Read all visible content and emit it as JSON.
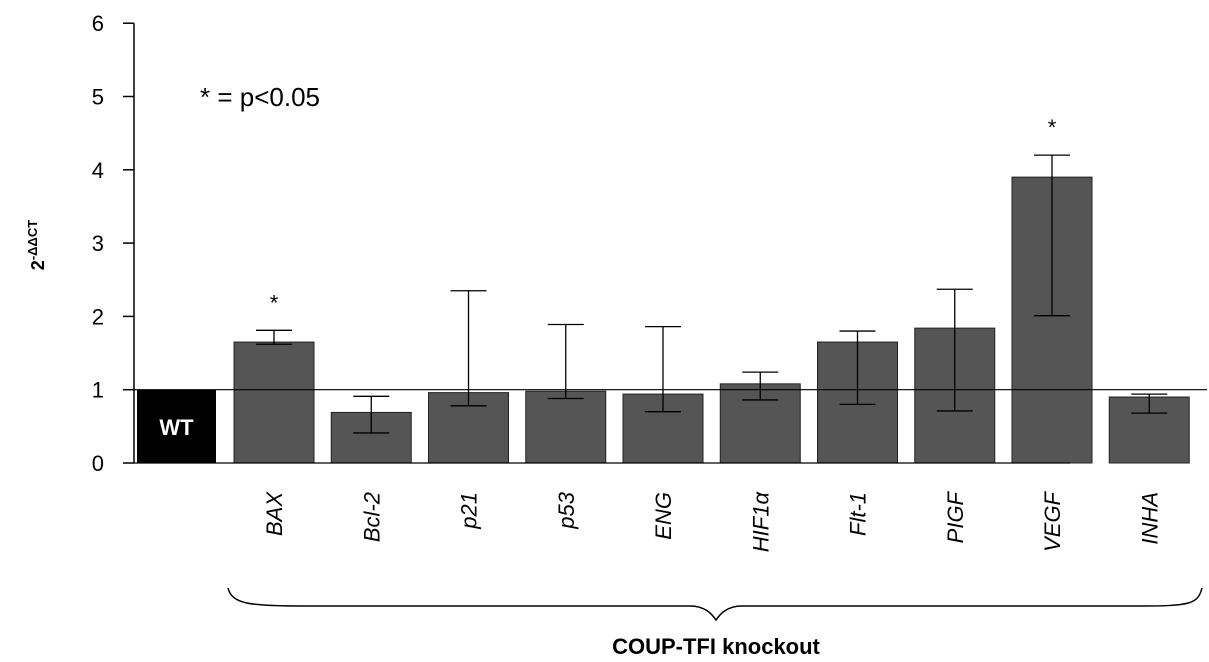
{
  "chart_data": {
    "type": "bar",
    "ylabel": {
      "base": "2",
      "exponent": "-ΔΔCT"
    },
    "ylim": [
      0,
      6
    ],
    "yticks": [
      "0",
      "1",
      "2",
      "3",
      "4",
      "5",
      "6"
    ],
    "reference_line": 1,
    "reference_bar": {
      "label": "WT",
      "value": 1,
      "color": "#000000"
    },
    "categories": [
      "BAX",
      "Bcl-2",
      "p21",
      "p53",
      "ENG",
      "HIF1α",
      "Flt-1",
      "PIGF",
      "VEGF",
      "INHA"
    ],
    "values": [
      1.65,
      0.69,
      0.96,
      0.98,
      0.94,
      1.08,
      1.65,
      1.84,
      3.9,
      0.9
    ],
    "error_low": [
      1.62,
      0.41,
      0.78,
      0.88,
      0.7,
      0.86,
      0.8,
      0.71,
      2.01,
      0.68
    ],
    "error_high": [
      1.81,
      0.91,
      2.35,
      1.89,
      1.86,
      1.24,
      1.8,
      2.37,
      4.2,
      0.94
    ],
    "significance": [
      "*",
      "",
      "",
      "",
      "",
      "",
      "",
      "",
      "*",
      ""
    ],
    "annotation": "* = p<0.05",
    "group_label": "COUP-TFI knockout",
    "bar_color": "#555555",
    "legend": "none",
    "grid": false
  }
}
